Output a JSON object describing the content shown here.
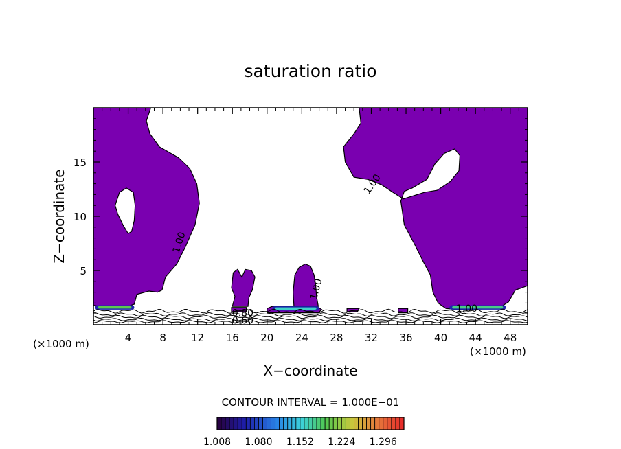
{
  "chart_data": {
    "type": "contour",
    "title": "saturation ratio",
    "xlabel": "X−coordinate",
    "ylabel": "Z−coordinate",
    "x_unit_left": "(×1000 m)",
    "x_unit_right": "(×1000 m)",
    "xlim": [
      0,
      50
    ],
    "ylim": [
      0,
      20
    ],
    "xticks": [
      4,
      8,
      12,
      16,
      20,
      24,
      28,
      32,
      36,
      40,
      44,
      48
    ],
    "yticks": [
      5,
      10,
      15
    ],
    "contour_interval_text": "CONTOUR INTERVAL = 1.000E−01",
    "contour_labels": [
      {
        "text": "1.00",
        "x": 10.2,
        "y": 7.5,
        "rot": -72
      },
      {
        "text": "1.00",
        "x": 32.4,
        "y": 12.8,
        "rot": -55
      },
      {
        "text": "1.00",
        "x": 26.0,
        "y": 3.2,
        "rot": -75
      },
      {
        "text": "1.00",
        "x": 43.0,
        "y": 1.2,
        "rot": 0
      },
      {
        "text": "0.80",
        "x": 17.2,
        "y": 0.8,
        "rot": 0
      },
      {
        "text": "0.60",
        "x": 17.2,
        "y": 0.1,
        "rot": 0
      }
    ],
    "fill_color": "#7a00b0",
    "colorbar": {
      "tick_labels": [
        "1.008",
        "1.080",
        "1.152",
        "1.224",
        "1.296"
      ],
      "min": 1.008,
      "max": 1.332
    },
    "regions_above_1": [
      {
        "name": "left",
        "outline": [
          [
            0,
            20
          ],
          [
            6.6,
            20
          ],
          [
            6.1,
            18.8
          ],
          [
            6.5,
            17.6
          ],
          [
            7.6,
            16.4
          ],
          [
            9.8,
            15.4
          ],
          [
            11.1,
            14.4
          ],
          [
            11.9,
            13.0
          ],
          [
            12.2,
            11.2
          ],
          [
            11.7,
            9.2
          ],
          [
            10.6,
            7.2
          ],
          [
            9.6,
            5.6
          ],
          [
            8.3,
            4.4
          ],
          [
            7.9,
            3.2
          ],
          [
            7.4,
            3.0
          ],
          [
            6.4,
            3.1
          ],
          [
            5.0,
            2.8
          ],
          [
            4.7,
            1.9
          ],
          [
            3.6,
            1.6
          ],
          [
            1.6,
            1.6
          ],
          [
            0,
            1.8
          ]
        ],
        "hole": [
          [
            2.5,
            11.0
          ],
          [
            3.0,
            12.2
          ],
          [
            3.8,
            12.6
          ],
          [
            4.6,
            12.2
          ],
          [
            4.8,
            11.0
          ],
          [
            4.7,
            9.6
          ],
          [
            4.4,
            8.6
          ],
          [
            4.0,
            8.4
          ],
          [
            3.4,
            9.2
          ],
          [
            2.8,
            10.2
          ]
        ]
      },
      {
        "name": "right",
        "outline": [
          [
            30.6,
            20
          ],
          [
            50,
            20
          ],
          [
            50,
            3.6
          ],
          [
            49.3,
            3.4
          ],
          [
            48.6,
            3.2
          ],
          [
            47.8,
            2.1
          ],
          [
            46.6,
            1.5
          ],
          [
            42.0,
            1.4
          ],
          [
            40.6,
            1.5
          ],
          [
            39.7,
            2.0
          ],
          [
            39.1,
            3.0
          ],
          [
            38.8,
            4.6
          ],
          [
            38.0,
            5.8
          ],
          [
            37.0,
            7.4
          ],
          [
            35.8,
            9.2
          ],
          [
            35.4,
            11.4
          ],
          [
            35.8,
            12.3
          ],
          [
            36.7,
            12.6
          ],
          [
            38.4,
            13.4
          ],
          [
            39.3,
            14.8
          ],
          [
            40.4,
            15.8
          ],
          [
            41.6,
            16.2
          ],
          [
            42.2,
            15.6
          ],
          [
            42.1,
            14.2
          ],
          [
            41.1,
            13.2
          ],
          [
            39.6,
            12.4
          ],
          [
            38.1,
            12.2
          ],
          [
            35.7,
            11.6
          ],
          [
            34.5,
            12.2
          ],
          [
            33.2,
            12.9
          ],
          [
            31.6,
            13.4
          ],
          [
            30.0,
            13.6
          ],
          [
            29.0,
            15.0
          ],
          [
            28.8,
            16.4
          ],
          [
            30.0,
            17.6
          ],
          [
            30.8,
            18.6
          ]
        ]
      },
      {
        "name": "cell-18",
        "outline": [
          [
            16.0,
            1.7
          ],
          [
            16.3,
            2.6
          ],
          [
            15.9,
            3.4
          ],
          [
            16.1,
            4.8
          ],
          [
            16.6,
            5.1
          ],
          [
            17.1,
            4.4
          ],
          [
            17.5,
            5.1
          ],
          [
            18.2,
            5.0
          ],
          [
            18.6,
            4.4
          ],
          [
            18.3,
            3.2
          ],
          [
            17.9,
            2.5
          ],
          [
            17.8,
            1.7
          ]
        ]
      },
      {
        "name": "cell-24",
        "outline": [
          [
            23.1,
            1.6
          ],
          [
            23.0,
            3.0
          ],
          [
            23.2,
            4.6
          ],
          [
            23.7,
            5.3
          ],
          [
            24.4,
            5.6
          ],
          [
            25.0,
            5.4
          ],
          [
            25.4,
            4.6
          ],
          [
            25.6,
            3.6
          ],
          [
            25.7,
            2.6
          ],
          [
            25.9,
            1.7
          ]
        ]
      },
      {
        "name": "band-22",
        "outline": [
          [
            20.0,
            1.1
          ],
          [
            25.9,
            1.1
          ],
          [
            26.3,
            1.4
          ],
          [
            25.7,
            1.7
          ],
          [
            20.6,
            1.7
          ],
          [
            20.0,
            1.5
          ]
        ]
      },
      {
        "name": "blob-30",
        "outline": [
          [
            29.2,
            1.2
          ],
          [
            30.4,
            1.2
          ],
          [
            30.6,
            1.5
          ],
          [
            29.2,
            1.5
          ]
        ]
      },
      {
        "name": "blob-35",
        "outline": [
          [
            35.1,
            1.1
          ],
          [
            36.2,
            1.1
          ],
          [
            36.2,
            1.5
          ],
          [
            35.1,
            1.5
          ]
        ]
      },
      {
        "name": "blob-16",
        "outline": [
          [
            15.9,
            1.2
          ],
          [
            17.6,
            1.2
          ],
          [
            17.6,
            1.6
          ],
          [
            15.9,
            1.6
          ]
        ]
      }
    ],
    "high_bands": [
      {
        "x0": 0.2,
        "x1": 4.7,
        "y0": 1.4,
        "y1": 1.8,
        "value": 1.2
      },
      {
        "x0": 41.0,
        "x1": 47.5,
        "y0": 1.4,
        "y1": 1.8,
        "value": 1.18
      },
      {
        "x0": 20.6,
        "x1": 26.0,
        "y0": 1.3,
        "y1": 1.7,
        "value": 1.16
      }
    ],
    "low_contours": [
      {
        "value": 0.9,
        "base": 1.25,
        "amp": 0.12
      },
      {
        "value": 0.8,
        "base": 0.95,
        "amp": 0.1
      },
      {
        "value": 0.7,
        "base": 0.72,
        "amp": 0.09
      },
      {
        "value": 0.6,
        "base": 0.48,
        "amp": 0.08
      },
      {
        "value": 0.5,
        "base": 0.28,
        "amp": 0.07
      }
    ]
  }
}
